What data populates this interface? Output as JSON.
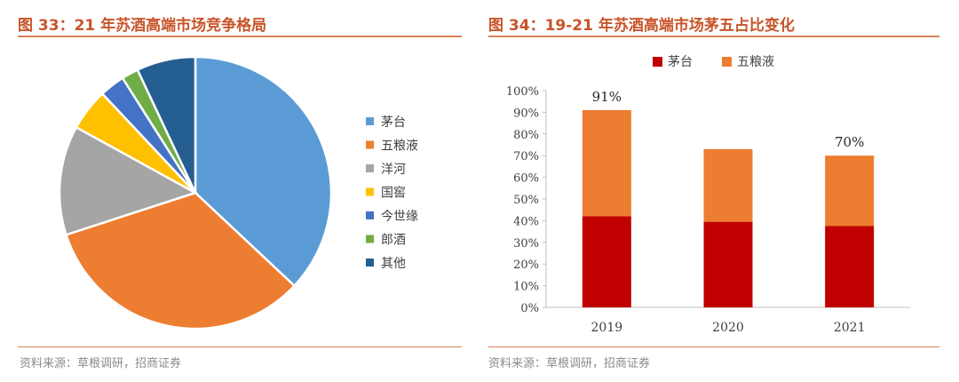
{
  "charts": [
    {
      "title": "图 33：21 年苏酒高端市场竞争格局",
      "source": "资料来源：草根调研，招商证券",
      "chart_data": {
        "type": "pie",
        "slices": [
          {
            "label": "茅台",
            "value": 37,
            "color": "#5b9bd5"
          },
          {
            "label": "五粮液",
            "value": 33,
            "color": "#ed7d31"
          },
          {
            "label": "洋河",
            "value": 13,
            "color": "#a5a5a5"
          },
          {
            "label": "国窖",
            "value": 5,
            "color": "#ffc000"
          },
          {
            "label": "今世缘",
            "value": 3,
            "color": "#4472c4"
          },
          {
            "label": "郎酒",
            "value": 2,
            "color": "#70ad47"
          },
          {
            "label": "其他",
            "value": 7,
            "color": "#255e91"
          }
        ],
        "legend_position": "right"
      }
    },
    {
      "title": "图 34：19-21 年苏酒高端市场茅五占比变化",
      "source": "资料来源：草根调研，招商证券",
      "chart_data": {
        "type": "bar",
        "stacked": true,
        "categories": [
          "2019",
          "2020",
          "2021"
        ],
        "series": [
          {
            "name": "茅台",
            "values": [
              42,
              39.5,
              37.5
            ],
            "color": "#c00000"
          },
          {
            "name": "五粮液",
            "values": [
              49,
              33.5,
              32.5
            ],
            "color": "#ed7d31"
          }
        ],
        "annotations": [
          "91%",
          "",
          "70%"
        ],
        "ylim": [
          0,
          100
        ],
        "yticks": [
          "0%",
          "10%",
          "20%",
          "30%",
          "40%",
          "50%",
          "60%",
          "70%",
          "80%",
          "90%",
          "100%"
        ],
        "legend_position": "top",
        "grid": false
      }
    }
  ]
}
